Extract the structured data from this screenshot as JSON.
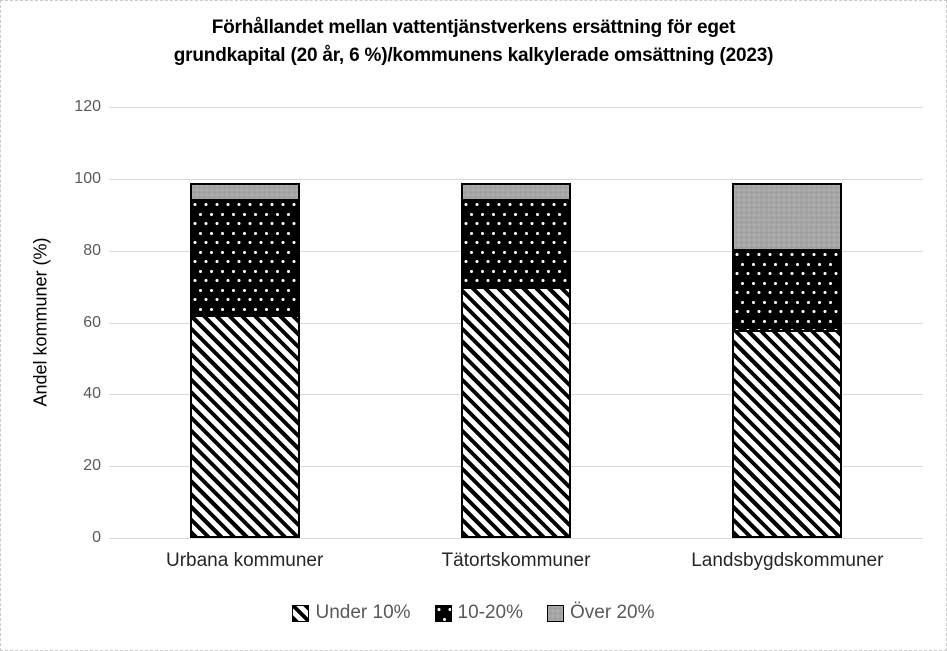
{
  "chart_data": {
    "type": "bar",
    "stacked": true,
    "title_lines": [
      "Förhållandet mellan vattentjänstverkens ersättning för eget",
      "grundkapital (20 år, 6 %)/kommunens kalkylerade omsättning (2023)"
    ],
    "ylabel": "Andel kommuner (%)",
    "categories": [
      "Urbana kommuner",
      "Tätortskommuner",
      "Landsbygdskommuner"
    ],
    "series": [
      {
        "name": "Under 10%",
        "pattern": "diagonal-hatch",
        "values": [
          62,
          70,
          58
        ]
      },
      {
        "name": "10-20%",
        "pattern": "white-dots-on-black",
        "values": [
          33,
          25,
          23
        ]
      },
      {
        "name": "Över 20%",
        "pattern": "solid-gray",
        "values": [
          5,
          5,
          19
        ]
      }
    ],
    "y_ticks": [
      "0",
      "20",
      "40",
      "60",
      "80",
      "100",
      "120"
    ],
    "ylim": [
      0,
      120
    ],
    "grid": true,
    "legend_position": "bottom",
    "colors": {
      "bar_outline": "#000000",
      "hatch_stripe": "#000000",
      "dots_background": "#000000",
      "gray_fill": "#a6a6a6",
      "gridline": "#d9d9d9",
      "tick_label": "#595959",
      "legend_text": "#595959",
      "title": "#000000",
      "category_label": "#262626"
    }
  }
}
